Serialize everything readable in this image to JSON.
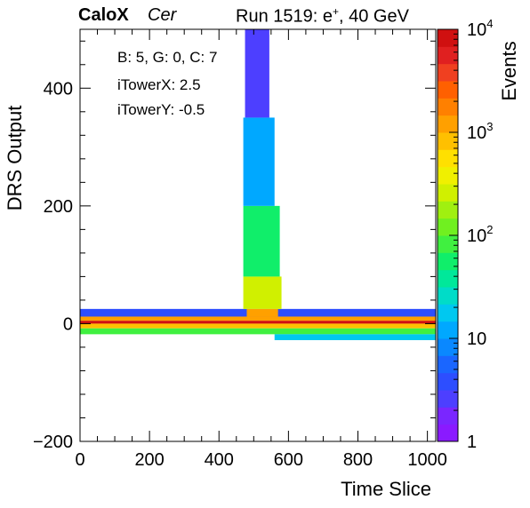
{
  "header": {
    "experiment": "CaloX",
    "channel": "Cer",
    "run": "Run 1519: e",
    "run_sup": "+",
    "run_suffix": ", 40 GeV"
  },
  "info_box": {
    "line1": "B: 5, G: 0, C: 7",
    "line2": "iTowerX: 2.5",
    "line3": "iTowerY: -0.5"
  },
  "chart_data": {
    "type": "heatmap",
    "title": "",
    "xlabel": "Time Slice",
    "ylabel": "DRS Output",
    "zlabel": "Events",
    "xlim": [
      0,
      1024
    ],
    "ylim": [
      -200,
      500
    ],
    "zlim": [
      1,
      10000
    ],
    "z_scale": "log",
    "x_ticks": [
      0,
      200,
      400,
      600,
      800,
      1000
    ],
    "y_ticks": [
      -200,
      0,
      200,
      400
    ],
    "z_ticks": [
      {
        "value": 1,
        "label": "1"
      },
      {
        "value": 10,
        "label": "10"
      },
      {
        "value": 100,
        "label": "10",
        "sup": "2"
      },
      {
        "value": 1000,
        "label": "10",
        "sup": "3"
      },
      {
        "value": 10000,
        "label": "10",
        "sup": "4"
      }
    ],
    "palette": [
      "#8a1aff",
      "#7a26ff",
      "#4d3fff",
      "#2d4eff",
      "#1a66ff",
      "#0a88ff",
      "#00a8ff",
      "#00c8f0",
      "#00dcc8",
      "#00e89a",
      "#10ee6a",
      "#40f040",
      "#70f020",
      "#a0f010",
      "#d0f000",
      "#f0f000",
      "#ffe000",
      "#ffc000",
      "#ffa000",
      "#ff8000",
      "#ff6000",
      "#f04020",
      "#e02020",
      "#d01010"
    ],
    "regions": [
      {
        "name": "baseline-core",
        "x": [
          0,
          1024
        ],
        "y": [
          0,
          5
        ],
        "z": 10000
      },
      {
        "name": "baseline-upper",
        "x": [
          0,
          1024
        ],
        "y": [
          5,
          12
        ],
        "z": 1200
      },
      {
        "name": "baseline-upper-halo",
        "x": [
          0,
          1024
        ],
        "y": [
          12,
          25
        ],
        "z": 4
      },
      {
        "name": "baseline-lower",
        "x": [
          0,
          1024
        ],
        "y": [
          -8,
          0
        ],
        "z": 900
      },
      {
        "name": "baseline-lower-halo",
        "x": [
          0,
          1024
        ],
        "y": [
          -18,
          -8
        ],
        "z": 80
      },
      {
        "name": "late-undershoot",
        "x": [
          560,
          1024
        ],
        "y": [
          -28,
          -18
        ],
        "z": 20
      },
      {
        "name": "pulse-peak",
        "x": [
          480,
          570
        ],
        "y": [
          12,
          25
        ],
        "z": 1000
      },
      {
        "name": "pulse-body",
        "x": [
          470,
          580
        ],
        "y": [
          25,
          80
        ],
        "z": 300
      },
      {
        "name": "pulse-mid",
        "x": [
          470,
          575
        ],
        "y": [
          80,
          200
        ],
        "z": 60
      },
      {
        "name": "pulse-upper",
        "x": [
          470,
          560
        ],
        "y": [
          200,
          350
        ],
        "z": 12
      },
      {
        "name": "pulse-tail",
        "x": [
          475,
          545
        ],
        "y": [
          350,
          500
        ],
        "z": 3
      }
    ]
  }
}
